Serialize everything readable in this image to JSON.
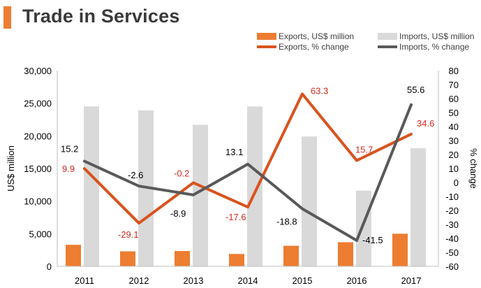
{
  "header": {
    "title": "Trade in Services"
  },
  "colors": {
    "accent": "#ed7d31",
    "exports_bar": "#ed7d31",
    "imports_bar": "#d9d9d9",
    "exports_line": "#d9531e",
    "imports_line": "#595959",
    "exports_label": "#d42a1e",
    "imports_label": "#000000"
  },
  "chart_data": {
    "type": "bar",
    "title": "Trade in Services",
    "categories": [
      "2011",
      "2012",
      "2013",
      "2014",
      "2015",
      "2016",
      "2017"
    ],
    "series": [
      {
        "name": "Exports, US$ million",
        "kind": "bar",
        "axis": "left",
        "values": [
          3300,
          2300,
          2350,
          1900,
          3150,
          3700,
          5000
        ]
      },
      {
        "name": "Imports, US$ million",
        "kind": "bar",
        "axis": "left",
        "values": [
          24500,
          23900,
          21700,
          24500,
          19900,
          11600,
          18100
        ]
      },
      {
        "name": "Exports, % change",
        "kind": "line",
        "axis": "right",
        "values": [
          9.9,
          -29.1,
          -0.2,
          -17.6,
          63.3,
          15.7,
          34.6
        ]
      },
      {
        "name": "Imports, % change",
        "kind": "line",
        "axis": "right",
        "values": [
          15.2,
          -2.6,
          -8.9,
          13.1,
          -18.8,
          -41.5,
          55.6
        ]
      }
    ],
    "data_labels": {
      "exports_change": [
        "9.9",
        "-29.1",
        "-0.2",
        "-17.6",
        "63.3",
        "15.7",
        "34.6"
      ],
      "imports_change": [
        "15.2",
        "-2.6",
        "-8.9",
        "13.1",
        "-18.8",
        "-41.5",
        "55.6"
      ]
    },
    "ylabel": "US$ million",
    "y2label": "% change",
    "ylim": [
      0,
      30000
    ],
    "y2lim": [
      -60,
      80
    ],
    "yticks": [
      "0",
      "5,000",
      "10,000",
      "15,000",
      "20,000",
      "25,000",
      "30,000"
    ],
    "y2ticks": [
      "-60",
      "-50",
      "-40",
      "-30",
      "-20",
      "-10",
      "0",
      "10",
      "20",
      "30",
      "40",
      "50",
      "60",
      "70",
      "80"
    ],
    "legend_position": "top-right",
    "grid": false
  }
}
